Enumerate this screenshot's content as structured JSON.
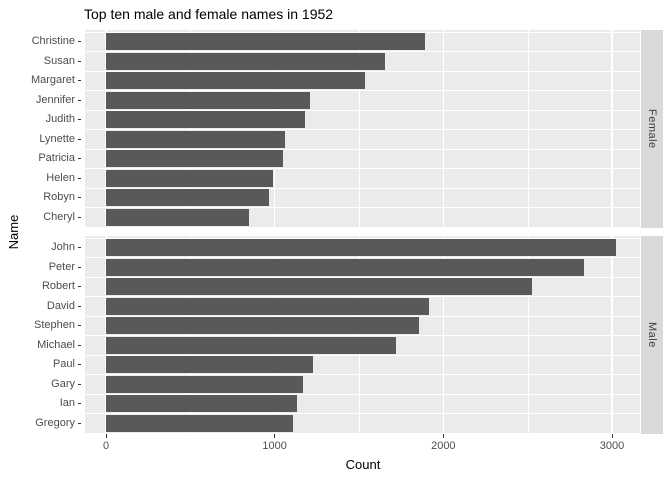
{
  "title": "Top ten male and female names in 1952",
  "axes": {
    "x_title": "Count",
    "y_title": "Name",
    "x_tick_labels": [
      "0",
      "1000",
      "2000",
      "3000"
    ],
    "x_tick_values": [
      0,
      1000,
      2000,
      3000
    ],
    "x_minor_values": [
      500,
      1500,
      2500
    ]
  },
  "colors": {
    "bar_fill": "#595959",
    "panel_background": "#EBEBEB",
    "strip_background": "#D9D9D9",
    "gridline": "#FFFFFF",
    "axis_text": "#4D4D4D",
    "tick_mark": "#333333",
    "title_text": "#000000",
    "strip_text": "#404040"
  },
  "chart_data": {
    "type": "bar",
    "orientation": "horizontal",
    "title": "Top ten male and female names in 1952",
    "xlabel": "Count",
    "ylabel": "Name",
    "xlim": [
      0,
      3170
    ],
    "grid": true,
    "legend": false,
    "facets": [
      {
        "label": "Female",
        "categories": [
          "Christine",
          "Susan",
          "Margaret",
          "Jennifer",
          "Judith",
          "Lynette",
          "Patricia",
          "Helen",
          "Robyn",
          "Cheryl"
        ],
        "values": [
          1890,
          1655,
          1535,
          1210,
          1180,
          1060,
          1050,
          990,
          965,
          845
        ]
      },
      {
        "label": "Male",
        "categories": [
          "John",
          "Peter",
          "Robert",
          "David",
          "Stephen",
          "Michael",
          "Paul",
          "Gary",
          "Ian",
          "Gregory"
        ],
        "values": [
          3025,
          2835,
          2525,
          1915,
          1855,
          1720,
          1225,
          1165,
          1135,
          1110
        ]
      }
    ]
  }
}
